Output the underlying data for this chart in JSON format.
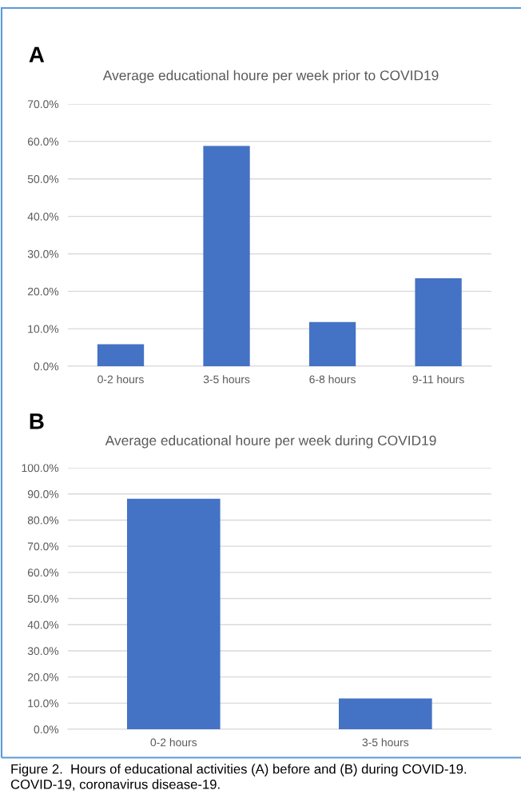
{
  "chart_data": [
    {
      "type": "bar",
      "title": "Average educational houre per week prior to COVID19",
      "categories": [
        "0-2 hours",
        "3-5 hours",
        "6-8 hours",
        "9-11 hours"
      ],
      "values": [
        5.9,
        58.8,
        11.8,
        23.5
      ],
      "color": "#4472c4",
      "ylim": [
        0,
        70
      ],
      "yticks": [
        {
          "value": 0,
          "label": "0.0%"
        },
        {
          "value": 10,
          "label": "10.0%"
        },
        {
          "value": 20,
          "label": "20.0%"
        },
        {
          "value": 30,
          "label": "30.0%"
        },
        {
          "value": 40,
          "label": "40.0%"
        },
        {
          "value": 50,
          "label": "50.0%"
        },
        {
          "value": 60,
          "label": "60.0%"
        },
        {
          "value": 70,
          "label": "70.0%"
        }
      ],
      "grid": "y",
      "legend": false,
      "annotations": [
        "A"
      ]
    },
    {
      "type": "bar",
      "title": "Average educational houre per week during COVID19",
      "categories": [
        "0-2 hours",
        "3-5 hours"
      ],
      "values": [
        88.2,
        11.8
      ],
      "color": "#4472c4",
      "ylim": [
        0,
        100
      ],
      "yticks": [
        {
          "value": 0,
          "label": "0.0%"
        },
        {
          "value": 10,
          "label": "10.0%"
        },
        {
          "value": 20,
          "label": "20.0%"
        },
        {
          "value": 30,
          "label": "30.0%"
        },
        {
          "value": 40,
          "label": "40.0%"
        },
        {
          "value": 50,
          "label": "50.0%"
        },
        {
          "value": 60,
          "label": "60.0%"
        },
        {
          "value": 70,
          "label": "70.0%"
        },
        {
          "value": 80,
          "label": "80.0%"
        },
        {
          "value": 90,
          "label": "90.0%"
        },
        {
          "value": 100,
          "label": "100.0%"
        }
      ],
      "grid": "y",
      "legend": false,
      "annotations": [
        "B",
        "Figure 2.  Hours of educational activities (A) before and (B) during COVID-19. COVID-19, coronavirus disease-19."
      ]
    }
  ]
}
